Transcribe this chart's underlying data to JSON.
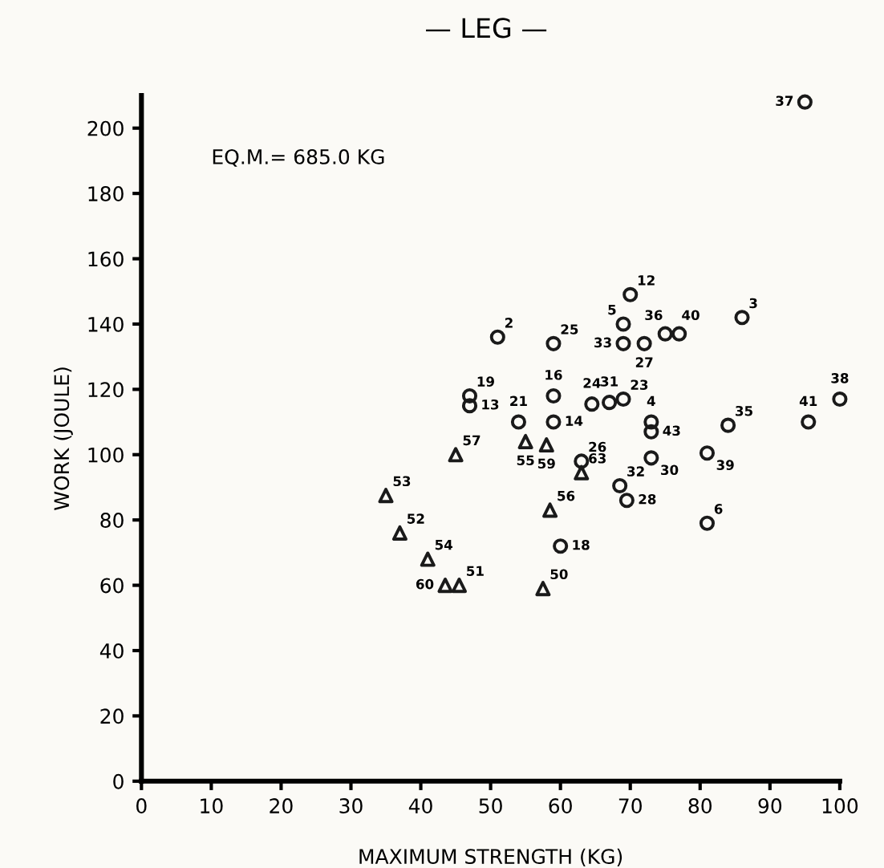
{
  "chart_data": {
    "type": "scatter",
    "title": "— LEG —",
    "subtitle": "EQ.M.= 685.0 KG",
    "xlabel": "MAXIMUM STRENGTH (KG)",
    "ylabel": "WORK (JOULE)",
    "xlim": [
      0,
      100
    ],
    "ylim": [
      0,
      210
    ],
    "xticks": [
      0,
      10,
      20,
      30,
      40,
      50,
      60,
      70,
      80,
      90,
      100
    ],
    "yticks": [
      0,
      20,
      40,
      60,
      80,
      100,
      120,
      140,
      160,
      180,
      200
    ],
    "grid": false,
    "legend": false,
    "series": [
      {
        "color": "#1a1a1a",
        "marker": "circle",
        "x": [
          51,
          59,
          70,
          69,
          69,
          72,
          75,
          77,
          86,
          95,
          59,
          47,
          47,
          54,
          59,
          64.5,
          67,
          69,
          73,
          73,
          84,
          95.5,
          100,
          63,
          73,
          81,
          68.5,
          69.5,
          81,
          60
        ],
        "values": [
          136,
          134,
          149,
          140,
          134,
          134,
          137,
          137,
          142,
          208,
          118,
          118,
          115,
          110,
          110,
          115.5,
          116,
          117,
          110,
          107,
          109,
          110,
          117,
          98,
          99,
          100.5,
          90.5,
          86,
          79,
          72
        ]
      },
      {
        "color": "#1a1a1a",
        "marker": "triangle",
        "x": [
          45,
          55,
          58,
          63,
          35,
          37,
          41,
          43.5,
          45.5,
          58.5,
          57.5
        ],
        "values": [
          100,
          104,
          103,
          94.5,
          87.5,
          76,
          68,
          60,
          60,
          83,
          59
        ]
      }
    ],
    "annotations": [
      {
        "text": "2",
        "x": 51,
        "y": 136
      },
      {
        "text": "25",
        "x": 59,
        "y": 134
      },
      {
        "text": "12",
        "x": 70,
        "y": 149
      },
      {
        "text": "5",
        "x": 69,
        "y": 140
      },
      {
        "text": "33",
        "x": 69,
        "y": 134
      },
      {
        "text": "27",
        "x": 72,
        "y": 134
      },
      {
        "text": "36",
        "x": 75,
        "y": 137
      },
      {
        "text": "40",
        "x": 77,
        "y": 137
      },
      {
        "text": "3",
        "x": 86,
        "y": 142
      },
      {
        "text": "37",
        "x": 95,
        "y": 208
      },
      {
        "text": "16",
        "x": 59,
        "y": 118
      },
      {
        "text": "19",
        "x": 47,
        "y": 118
      },
      {
        "text": "13",
        "x": 47,
        "y": 115
      },
      {
        "text": "21",
        "x": 54,
        "y": 110
      },
      {
        "text": "14",
        "x": 59,
        "y": 110
      },
      {
        "text": "24",
        "x": 64.5,
        "y": 115.5
      },
      {
        "text": "31",
        "x": 67,
        "y": 116
      },
      {
        "text": "23",
        "x": 69,
        "y": 117
      },
      {
        "text": "4",
        "x": 73,
        "y": 110
      },
      {
        "text": "43",
        "x": 73,
        "y": 107
      },
      {
        "text": "35",
        "x": 84,
        "y": 109
      },
      {
        "text": "41",
        "x": 95.5,
        "y": 110
      },
      {
        "text": "38",
        "x": 100,
        "y": 117
      },
      {
        "text": "26",
        "x": 63,
        "y": 98
      },
      {
        "text": "30",
        "x": 73,
        "y": 99
      },
      {
        "text": "39",
        "x": 81,
        "y": 100.5
      },
      {
        "text": "32",
        "x": 68.5,
        "y": 90.5
      },
      {
        "text": "28",
        "x": 69.5,
        "y": 86
      },
      {
        "text": "6",
        "x": 81,
        "y": 79
      },
      {
        "text": "18",
        "x": 60,
        "y": 72
      },
      {
        "text": "57",
        "x": 45,
        "y": 100
      },
      {
        "text": "55",
        "x": 55,
        "y": 104
      },
      {
        "text": "59",
        "x": 58,
        "y": 103
      },
      {
        "text": "63",
        "x": 63,
        "y": 94.5
      },
      {
        "text": "53",
        "x": 35,
        "y": 87.5
      },
      {
        "text": "52",
        "x": 37,
        "y": 76
      },
      {
        "text": "54",
        "x": 41,
        "y": 68
      },
      {
        "text": "60",
        "x": 43.5,
        "y": 60
      },
      {
        "text": "51",
        "x": 45.5,
        "y": 60
      },
      {
        "text": "56",
        "x": 58.5,
        "y": 83
      },
      {
        "text": "50",
        "x": 57.5,
        "y": 59
      }
    ]
  }
}
